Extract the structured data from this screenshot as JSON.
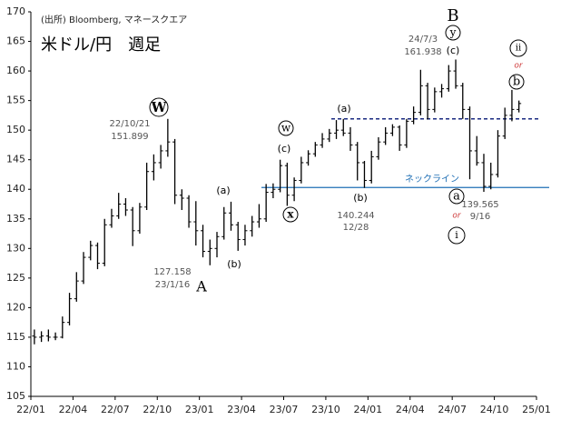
{
  "chart_data": {
    "type": "ohlc",
    "source": "(出所)  Bloomberg, マネースクエア",
    "title": "米ドル/円　週足",
    "xlim": [
      0,
      36
    ],
    "xticks": [
      {
        "value": 0,
        "label": "22/01"
      },
      {
        "value": 3,
        "label": "22/04"
      },
      {
        "value": 6,
        "label": "22/07"
      },
      {
        "value": 9,
        "label": "22/10"
      },
      {
        "value": 12,
        "label": "23/01"
      },
      {
        "value": 15,
        "label": "23/04"
      },
      {
        "value": 18,
        "label": "23/07"
      },
      {
        "value": 21,
        "label": "23/10"
      },
      {
        "value": 24,
        "label": "24/01"
      },
      {
        "value": 27,
        "label": "24/04"
      },
      {
        "value": 30,
        "label": "24/07"
      },
      {
        "value": 33,
        "label": "24/10"
      },
      {
        "value": 36,
        "label": "25/01"
      }
    ],
    "ylim": [
      105,
      170
    ],
    "yticks": [
      105,
      110,
      115,
      120,
      125,
      130,
      135,
      140,
      145,
      150,
      155,
      160,
      165,
      170
    ],
    "color": "#000000",
    "x": [
      0.25,
      0.75,
      1.25,
      1.75,
      2.25,
      2.75,
      3.25,
      3.75,
      4.25,
      4.75,
      5.25,
      5.75,
      6.25,
      6.75,
      7.25,
      7.75,
      8.25,
      8.75,
      9.25,
      9.75,
      10.25,
      10.75,
      11.25,
      11.75,
      12.25,
      12.75,
      13.25,
      13.75,
      14.25,
      14.75,
      15.25,
      15.75,
      16.25,
      16.75,
      17.25,
      17.75,
      18.25,
      18.75,
      19.25,
      19.75,
      20.25,
      20.75,
      21.25,
      21.75,
      22.25,
      22.75,
      23.25,
      23.75,
      24.25,
      24.75,
      25.25,
      25.75,
      26.25,
      26.75,
      27.25,
      27.75,
      28.25,
      28.75,
      29.25,
      29.75,
      30.25,
      30.75,
      31.25,
      31.75,
      32.25,
      32.75,
      33.25,
      33.75,
      34.25,
      34.75
    ],
    "open": [
      115.2,
      115.0,
      115.2,
      115.0,
      115.0,
      117.5,
      121.5,
      124.5,
      128.5,
      130.5,
      127.5,
      134.0,
      135.5,
      137.5,
      136.5,
      133.0,
      137.0,
      143.0,
      144.5,
      146.5,
      148.0,
      139.0,
      138.5,
      134.5,
      133.0,
      129.5,
      130.0,
      132.0,
      136.0,
      134.0,
      131.5,
      133.0,
      134.5,
      135.0,
      139.5,
      140.0,
      144.0,
      139.0,
      141.5,
      144.5,
      146.0,
      147.5,
      148.5,
      149.5,
      150.0,
      149.5,
      147.5,
      144.5,
      141.5,
      145.5,
      148.0,
      149.5,
      150.5,
      147.5,
      151.5,
      153.0,
      157.5,
      153.5,
      156.5,
      157.0,
      160.0,
      157.5,
      153.5,
      146.5,
      144.5,
      140.5,
      142.5,
      149.0,
      152.5,
      153.5
    ],
    "high": [
      116.3,
      116.0,
      116.3,
      115.8,
      118.5,
      122.5,
      126.0,
      129.4,
      131.3,
      131.0,
      135.0,
      136.7,
      139.4,
      138.5,
      137.0,
      137.7,
      144.5,
      145.9,
      147.5,
      151.899,
      148.5,
      140.0,
      139.0,
      138.0,
      134.0,
      131.5,
      132.8,
      137.0,
      137.9,
      134.5,
      134.0,
      135.5,
      137.5,
      140.9,
      141.0,
      145.0,
      144.5,
      142.0,
      145.5,
      146.6,
      148.0,
      149.5,
      150.2,
      151.7,
      151.9,
      150.5,
      148.0,
      144.8,
      146.5,
      148.8,
      150.5,
      151.0,
      150.8,
      151.9,
      154.0,
      160.2,
      158.0,
      157.2,
      157.8,
      161.0,
      161.938,
      158.0,
      154.0,
      149.0,
      146.0,
      144.5,
      150.0,
      153.8,
      156.8,
      155.0
    ],
    "low": [
      113.8,
      114.2,
      114.3,
      114.5,
      114.8,
      117.0,
      121.0,
      124.0,
      128.0,
      126.5,
      127.0,
      133.5,
      135.0,
      135.5,
      130.4,
      132.5,
      136.5,
      141.5,
      143.5,
      145.5,
      137.5,
      136.5,
      133.5,
      130.5,
      128.5,
      127.158,
      128.5,
      131.5,
      133.0,
      129.6,
      130.5,
      132.0,
      133.5,
      134.5,
      138.5,
      139.5,
      137.2,
      138.0,
      141.0,
      144.0,
      145.5,
      147.0,
      148.0,
      148.5,
      149.0,
      146.5,
      141.5,
      140.244,
      141.0,
      145.0,
      147.5,
      149.0,
      146.5,
      147.0,
      151.0,
      152.5,
      151.8,
      153.0,
      155.5,
      156.5,
      157.0,
      151.9,
      141.7,
      144.0,
      139.565,
      140.0,
      142.0,
      148.5,
      151.5,
      153.0
    ],
    "close": [
      115.0,
      115.2,
      115.0,
      115.0,
      117.5,
      121.5,
      124.5,
      128.5,
      130.5,
      127.5,
      134.0,
      135.5,
      137.5,
      136.5,
      133.0,
      137.0,
      143.0,
      144.5,
      146.5,
      148.0,
      139.0,
      138.5,
      134.5,
      133.0,
      129.5,
      130.0,
      132.0,
      136.0,
      134.0,
      131.5,
      133.0,
      134.5,
      135.0,
      139.5,
      140.0,
      144.0,
      139.0,
      141.5,
      144.5,
      146.0,
      147.5,
      148.5,
      149.5,
      150.0,
      149.5,
      147.5,
      144.5,
      141.5,
      145.5,
      148.0,
      149.5,
      150.5,
      147.5,
      151.5,
      153.0,
      157.5,
      153.5,
      156.5,
      157.0,
      160.0,
      157.5,
      153.5,
      146.5,
      144.5,
      140.5,
      142.5,
      149.0,
      152.5,
      153.5,
      154.5
    ],
    "neckline": 140.3,
    "neckline_color": "#1f6fb5",
    "resistance": 151.9,
    "resistance_color": "#1a2a80",
    "annotations": [
      "W",
      "22/10/21",
      "151.899",
      "127.158",
      "23/1/16",
      "A",
      "(a)",
      "(b)",
      "w",
      "(c)",
      "x",
      "(a)",
      "(b)",
      "140.244",
      "12/28",
      "B",
      "y",
      "(c)",
      "24/7/3",
      "161.938",
      "ネックライン",
      "a",
      "139.565",
      "9/16",
      "or",
      "i",
      "ii",
      "or",
      "b"
    ]
  }
}
